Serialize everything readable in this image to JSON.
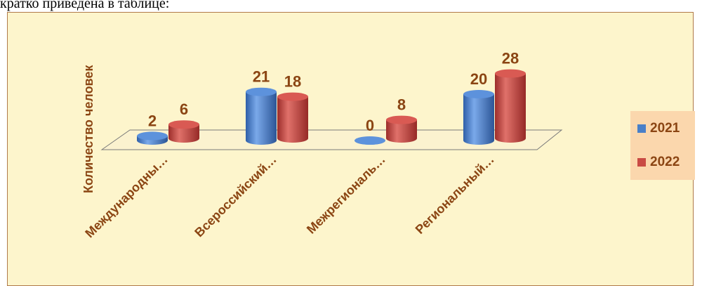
{
  "page": {
    "top_text": "кратко приведена в таблице:"
  },
  "colors": {
    "series_2021": "#4a7fc8",
    "series_2022": "#c94a44",
    "label": "#8b4513"
  },
  "chart_data": {
    "type": "bar",
    "categories": [
      "Международны…",
      "Всероссийский…",
      "Межрегиональ…",
      "Региональный…"
    ],
    "ylabel": "Количество человек",
    "series": [
      {
        "name": "2021",
        "values": [
          2,
          21,
          0,
          20
        ]
      },
      {
        "name": "2022",
        "values": [
          6,
          18,
          8,
          28
        ]
      }
    ],
    "ylim": [
      0,
      30
    ],
    "legend": "right",
    "grid": false
  }
}
